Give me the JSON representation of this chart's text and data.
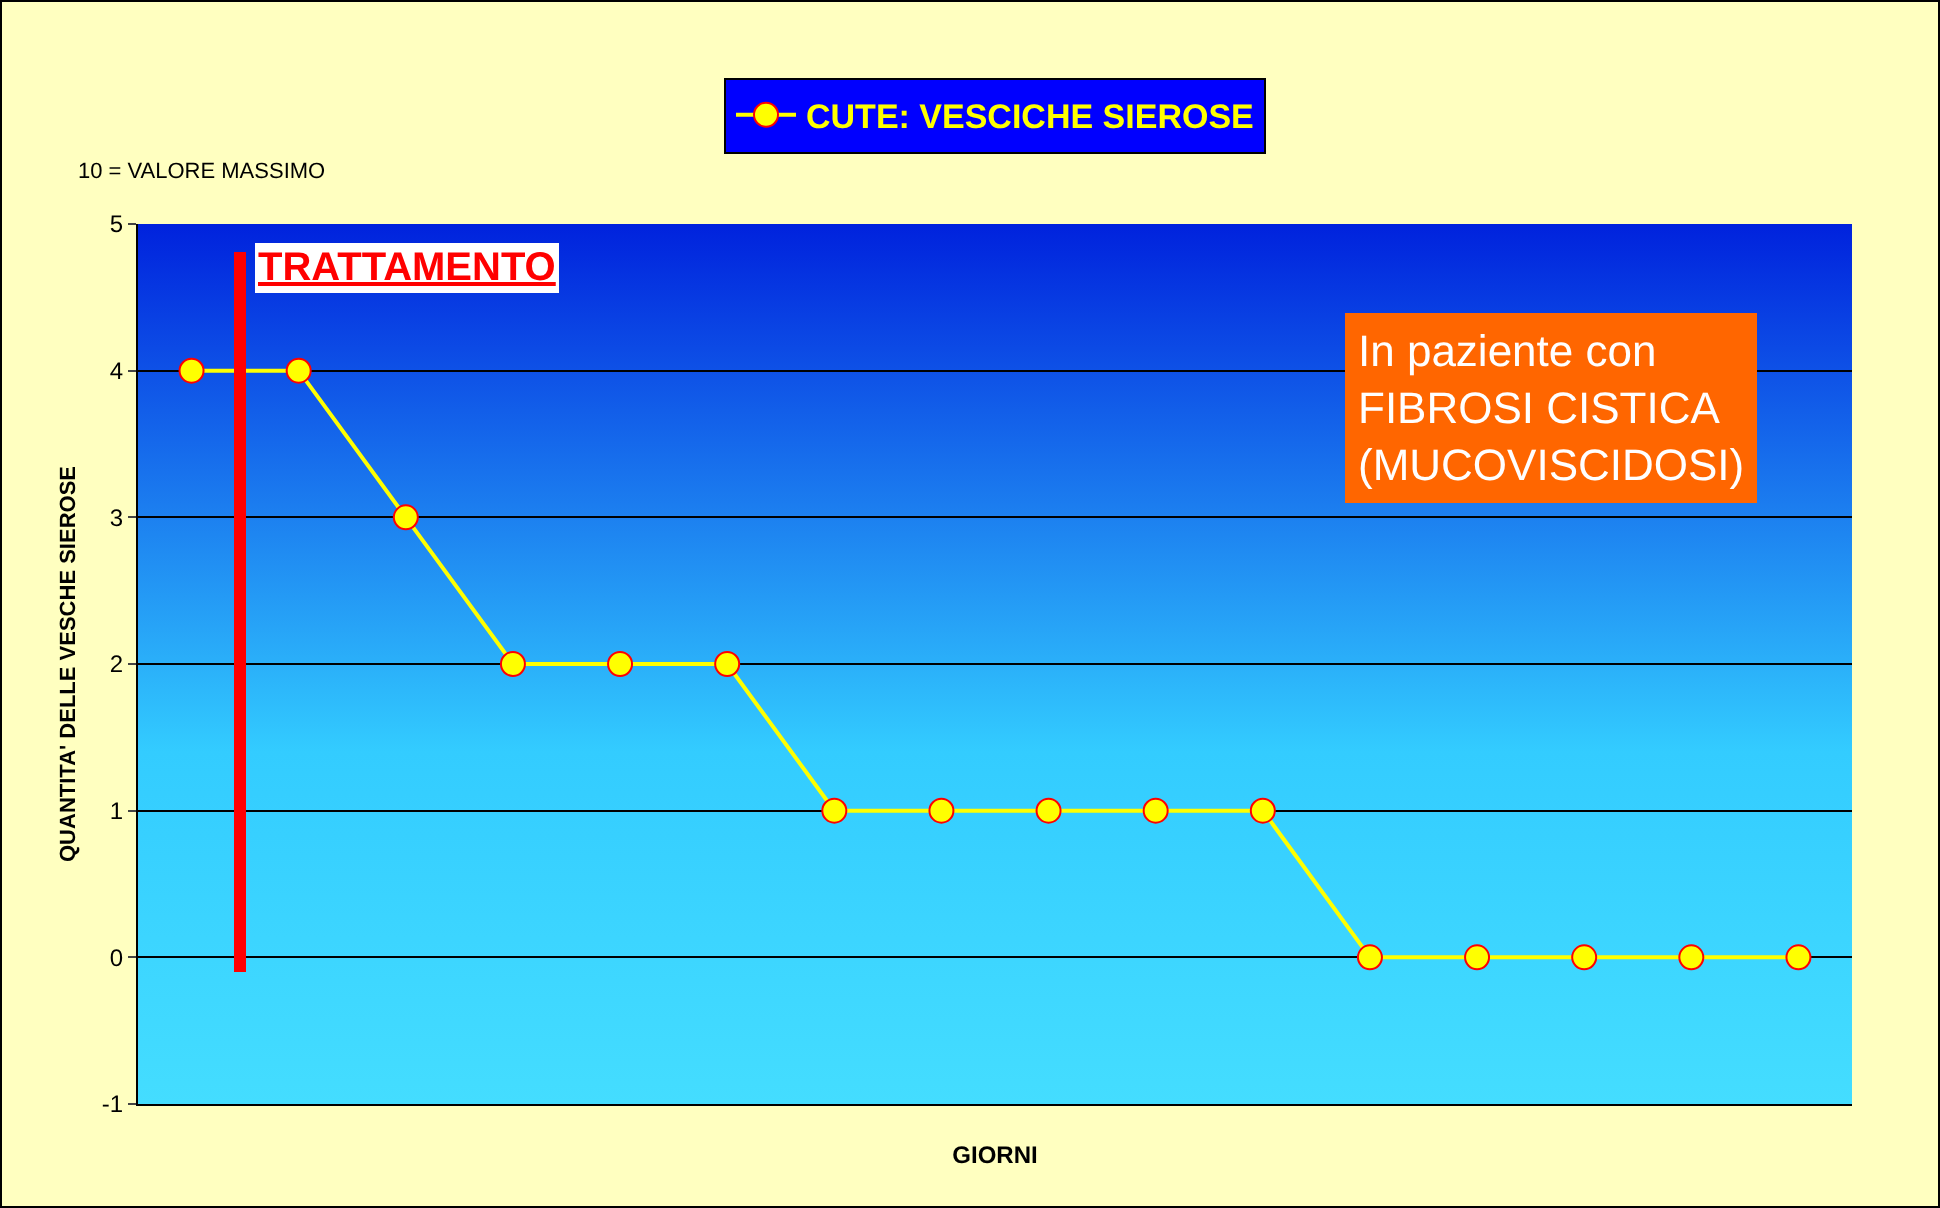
{
  "chart_data": {
    "type": "line",
    "xlabel": "GIORNI",
    "ylabel": "QUANTITA' DELLE VESCHE SIEROSE",
    "categories": [
      null,
      null,
      null,
      null,
      null,
      null,
      null,
      null,
      null,
      null,
      null,
      null,
      null,
      null,
      null,
      null
    ],
    "series": [
      {
        "name": "CUTE: VESCICHE SIEROSE",
        "color": "#ffff00",
        "values": [
          4,
          4,
          3,
          2,
          2,
          2,
          1,
          1,
          1,
          1,
          1,
          0,
          0,
          0,
          0,
          0
        ]
      }
    ],
    "ylim": [
      -1,
      5
    ],
    "yticks": [
      -1,
      0,
      1,
      2,
      3,
      4,
      5
    ],
    "grid": "y",
    "legend": "top",
    "marker": "circle",
    "line_style": "solid",
    "annotations": [
      "10 = VALORE MASSIMO",
      "In paziente con\nFIBROSI CISTICA\n(MUCOVISCIDOSI)",
      "TRATTAMENTO"
    ]
  }
}
